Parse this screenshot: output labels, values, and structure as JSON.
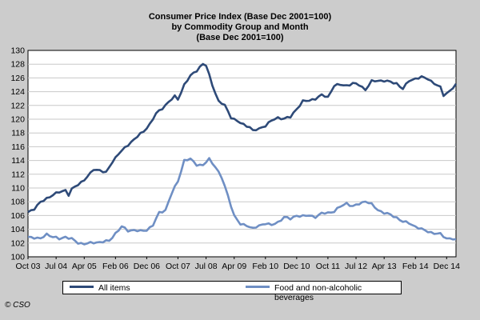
{
  "colors": {
    "background": "#cccccc",
    "plot": "#ffffff",
    "all_items": "#2e4a78",
    "food": "#6f8fc4"
  },
  "copyright": "© CSO",
  "chart_data": {
    "type": "line",
    "title": "Consumer Price Index (Base Dec 2001=100)",
    "subtitle": "by Commodity Group and Month",
    "subtitle2": "(Base Dec 2001=100)",
    "xlabel": "",
    "ylabel": "",
    "ylim": [
      100,
      130
    ],
    "yticks": [
      100,
      102,
      104,
      106,
      108,
      110,
      112,
      114,
      116,
      118,
      120,
      122,
      124,
      126,
      128,
      130
    ],
    "grid": "horizontal",
    "legend_position": "bottom",
    "xlim": [
      0,
      137
    ],
    "x_tick_labels": [
      {
        "i": 0,
        "label": "Oct 03"
      },
      {
        "i": 9,
        "label": "Jul 04"
      },
      {
        "i": 18,
        "label": "Apr 05"
      },
      {
        "i": 28,
        "label": "Feb 06"
      },
      {
        "i": 38,
        "label": "Dec 06"
      },
      {
        "i": 48,
        "label": "Oct 07"
      },
      {
        "i": 57,
        "label": "Jul 08"
      },
      {
        "i": 66,
        "label": "Apr 09"
      },
      {
        "i": 76,
        "label": "Feb 10"
      },
      {
        "i": 86,
        "label": "Dec 10"
      },
      {
        "i": 96,
        "label": "Oct 11"
      },
      {
        "i": 105,
        "label": "Jul 12"
      },
      {
        "i": 114,
        "label": "Apr 13"
      },
      {
        "i": 124,
        "label": "Feb 14"
      },
      {
        "i": 134,
        "label": "Dec 14"
      }
    ],
    "series": [
      {
        "name": "All items",
        "anchors": [
          [
            0,
            106.5
          ],
          [
            2,
            107
          ],
          [
            4,
            107.9
          ],
          [
            6,
            108.5
          ],
          [
            8,
            109
          ],
          [
            10,
            109.4
          ],
          [
            12,
            109.7
          ],
          [
            13,
            109
          ],
          [
            14,
            109.8
          ],
          [
            16,
            110.5
          ],
          [
            18,
            111.2
          ],
          [
            20,
            112.1
          ],
          [
            21,
            112.7
          ],
          [
            23,
            112.6
          ],
          [
            25,
            112.2
          ],
          [
            27,
            113.8
          ],
          [
            29,
            115
          ],
          [
            31,
            115.8
          ],
          [
            33,
            116.7
          ],
          [
            35,
            117.5
          ],
          [
            37,
            118.2
          ],
          [
            39,
            119.3
          ],
          [
            41,
            120.8
          ],
          [
            43,
            121.6
          ],
          [
            45,
            122.5
          ],
          [
            47,
            123.3
          ],
          [
            48,
            122.9
          ],
          [
            50,
            125
          ],
          [
            52,
            126.3
          ],
          [
            54,
            127.1
          ],
          [
            55,
            127.6
          ],
          [
            56,
            128
          ],
          [
            57,
            127.8
          ],
          [
            59,
            125
          ],
          [
            61,
            122.6
          ],
          [
            63,
            122
          ],
          [
            65,
            120.3
          ],
          [
            67,
            119.7
          ],
          [
            69,
            119.2
          ],
          [
            71,
            118.9
          ],
          [
            72,
            118.3
          ],
          [
            74,
            118.6
          ],
          [
            76,
            119.1
          ],
          [
            78,
            119.8
          ],
          [
            80,
            120.2
          ],
          [
            82,
            120.1
          ],
          [
            84,
            120.3
          ],
          [
            86,
            121.5
          ],
          [
            88,
            122.6
          ],
          [
            90,
            122.7
          ],
          [
            92,
            123
          ],
          [
            94,
            123.5
          ],
          [
            96,
            123.2
          ],
          [
            98,
            124.9
          ],
          [
            100,
            125
          ],
          [
            102,
            124.9
          ],
          [
            104,
            125.2
          ],
          [
            106,
            125
          ],
          [
            108,
            124.3
          ],
          [
            110,
            125.5
          ],
          [
            112,
            125.6
          ],
          [
            114,
            125.6
          ],
          [
            116,
            125.4
          ],
          [
            118,
            125.2
          ],
          [
            120,
            124.4
          ],
          [
            122,
            125.6
          ],
          [
            124,
            125.9
          ],
          [
            126,
            126.1
          ],
          [
            128,
            125.9
          ],
          [
            130,
            125.2
          ],
          [
            132,
            124.6
          ],
          [
            133,
            123.5
          ],
          [
            135,
            124.1
          ],
          [
            137,
            125
          ]
        ]
      },
      {
        "name": "Food and non-alcoholic beverages",
        "anchors": [
          [
            0,
            102.9
          ],
          [
            2,
            102.8
          ],
          [
            4,
            102.6
          ],
          [
            6,
            103.3
          ],
          [
            8,
            102.9
          ],
          [
            10,
            102.6
          ],
          [
            12,
            102.9
          ],
          [
            14,
            102.6
          ],
          [
            16,
            102
          ],
          [
            18,
            101.9
          ],
          [
            20,
            102
          ],
          [
            22,
            102.1
          ],
          [
            24,
            102.2
          ],
          [
            26,
            102.3
          ],
          [
            28,
            103.4
          ],
          [
            30,
            104.4
          ],
          [
            32,
            103.8
          ],
          [
            34,
            103.9
          ],
          [
            36,
            103.7
          ],
          [
            38,
            103.9
          ],
          [
            40,
            104.6
          ],
          [
            42,
            106.4
          ],
          [
            44,
            106.8
          ],
          [
            46,
            109.2
          ],
          [
            48,
            111
          ],
          [
            50,
            114
          ],
          [
            52,
            114.2
          ],
          [
            54,
            113.4
          ],
          [
            56,
            113.3
          ],
          [
            58,
            114.2
          ],
          [
            60,
            113.1
          ],
          [
            62,
            111.5
          ],
          [
            64,
            108.9
          ],
          [
            66,
            106
          ],
          [
            68,
            104.7
          ],
          [
            70,
            104.6
          ],
          [
            72,
            104.1
          ],
          [
            74,
            104.5
          ],
          [
            76,
            104.9
          ],
          [
            78,
            104.6
          ],
          [
            80,
            105
          ],
          [
            82,
            105.8
          ],
          [
            84,
            105.5
          ],
          [
            86,
            106
          ],
          [
            88,
            105.9
          ],
          [
            90,
            106
          ],
          [
            92,
            105.8
          ],
          [
            94,
            106.3
          ],
          [
            96,
            106.4
          ],
          [
            98,
            106.6
          ],
          [
            100,
            107.3
          ],
          [
            102,
            107.8
          ],
          [
            104,
            107.3
          ],
          [
            106,
            107.7
          ],
          [
            108,
            108.1
          ],
          [
            110,
            107.6
          ],
          [
            112,
            106.8
          ],
          [
            114,
            106.4
          ],
          [
            116,
            106.1
          ],
          [
            118,
            105.7
          ],
          [
            120,
            105.1
          ],
          [
            122,
            104.9
          ],
          [
            124,
            104.4
          ],
          [
            126,
            104
          ],
          [
            128,
            103.7
          ],
          [
            130,
            103.4
          ],
          [
            132,
            103.3
          ],
          [
            134,
            102.7
          ],
          [
            136,
            102.6
          ],
          [
            137,
            102.4
          ]
        ]
      }
    ]
  }
}
